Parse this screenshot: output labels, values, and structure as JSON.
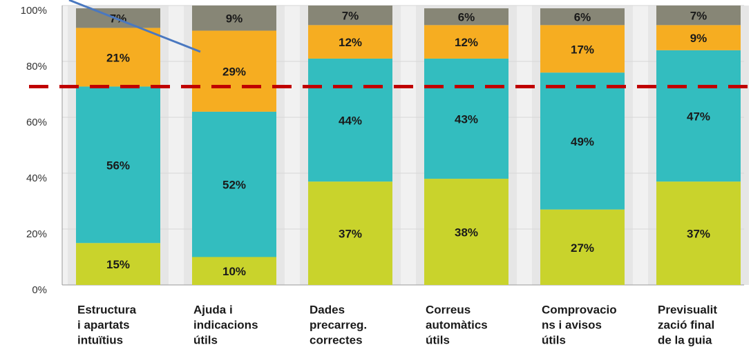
{
  "chart_data": {
    "type": "stacked_bar",
    "categories": [
      [
        "Estructura",
        "i apartats",
        "intuïtius"
      ],
      [
        "Ajuda i",
        "indicacions",
        "útils"
      ],
      [
        "Dades",
        "precarreg.",
        "correctes"
      ],
      [
        "Correus",
        "automàtics",
        "útils"
      ],
      [
        "Comprovacio",
        "ns i avisos",
        "útils"
      ],
      [
        "Previsualit",
        "zació final",
        "de la guia"
      ]
    ],
    "series": [
      {
        "color": "#c9d32c",
        "values": [
          15,
          10,
          37,
          38,
          27,
          37
        ],
        "value_labels": [
          "15%",
          "10%",
          "37%",
          "38%",
          "27%",
          "37%"
        ]
      },
      {
        "color": "#33bdbf",
        "values": [
          56,
          52,
          44,
          43,
          49,
          47
        ],
        "value_labels": [
          "56%",
          "52%",
          "44%",
          "43%",
          "49%",
          "47%"
        ]
      },
      {
        "color": "#f6ad21",
        "values": [
          21,
          29,
          12,
          12,
          17,
          9
        ],
        "value_labels": [
          "21%",
          "29%",
          "12%",
          "12%",
          "17%",
          "9%"
        ]
      },
      {
        "color": "#878676",
        "values": [
          7,
          9,
          7,
          6,
          6,
          7
        ],
        "value_labels": [
          "7%",
          "9%",
          "7%",
          "6%",
          "6%",
          "7%"
        ]
      }
    ],
    "ylim": [
      0,
      100
    ],
    "yticks": [
      {
        "value": 0,
        "label": "0%"
      },
      {
        "value": 20,
        "label": "20%"
      },
      {
        "value": 40,
        "label": "40%"
      },
      {
        "value": 60,
        "label": "60%"
      },
      {
        "value": 80,
        "label": "80%"
      },
      {
        "value": 100,
        "label": "100%"
      }
    ],
    "grid": true,
    "reference_line": {
      "value": 71,
      "color": "#c00000"
    }
  }
}
